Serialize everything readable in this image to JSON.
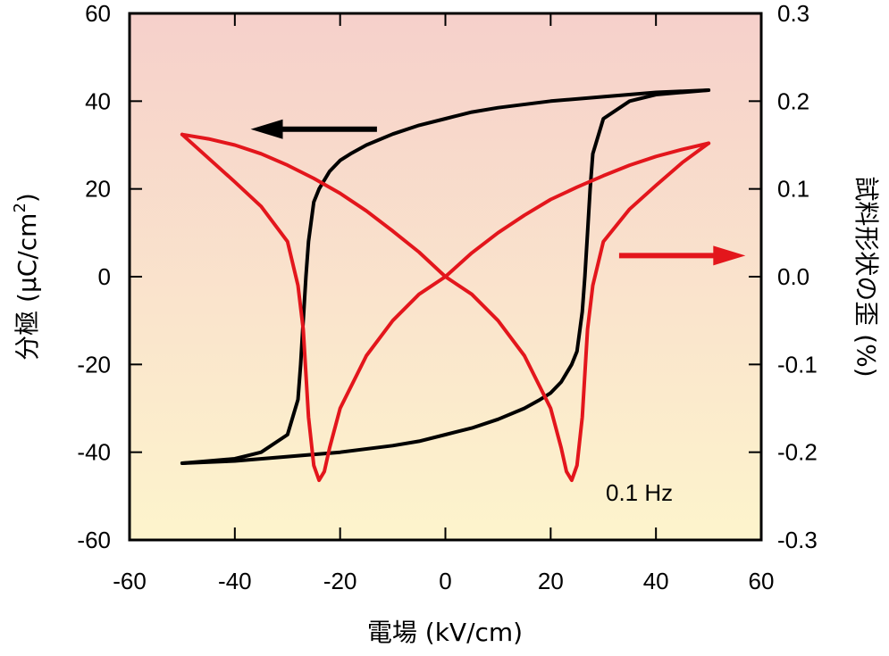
{
  "chart_data": {
    "type": "line",
    "title": "",
    "xlabel": "電場 (kV/cm)",
    "ylabel_left": "分極 (μC/cm",
    "ylabel_left_sup": "2",
    "ylabel_left_close": ")",
    "ylabel_right": "試料形状の歪 (%)",
    "xlim": [
      -60,
      60
    ],
    "ylim_left": [
      -60,
      60
    ],
    "ylim_right": [
      -0.3,
      0.3
    ],
    "xticks": [
      "-60",
      "-40",
      "-20",
      "0",
      "20",
      "40",
      "60"
    ],
    "yticks_left": [
      "-60",
      "-40",
      "-20",
      "0",
      "20",
      "40",
      "60"
    ],
    "yticks_right": [
      "-0.3",
      "-0.2",
      "-0.1",
      "0.0",
      "0.1",
      "0.2",
      "0.3"
    ],
    "annotation": "0.1 Hz",
    "background_gradient": [
      "#f6d0cb",
      "#fdf4cc"
    ],
    "series": [
      {
        "axis": "left",
        "color": "#000000",
        "branches": [
          {
            "x": [
              -50,
              -45,
              -40,
              -35,
              -30,
              -28,
              -27.5,
              -27,
              -26.5,
              -26,
              -25,
              -24,
              -22,
              -20,
              -18,
              -15,
              -10,
              -5,
              0,
              5,
              10,
              20,
              30,
              40,
              50
            ],
            "y": [
              -42.5,
              -42,
              -41.5,
              -40,
              -36,
              -28,
              -20,
              -10,
              0,
              8,
              17,
              20,
              24,
              26.5,
              28,
              30,
              32.5,
              34.5,
              36,
              37.5,
              38.5,
              40,
              41,
              42,
              42.5
            ]
          },
          {
            "x": [
              50,
              45,
              40,
              35,
              30,
              28,
              27.5,
              27,
              26.5,
              26,
              25,
              24,
              22,
              20,
              18,
              15,
              10,
              5,
              0,
              -5,
              -10,
              -20,
              -30,
              -40,
              -50
            ],
            "y": [
              42.5,
              42,
              41.5,
              40,
              36,
              28,
              20,
              10,
              0,
              -8,
              -17,
              -20,
              -24,
              -26.5,
              -28,
              -30,
              -32.5,
              -34.5,
              -36,
              -37.5,
              -38.5,
              -40,
              -41,
              -42,
              -42.5
            ]
          }
        ]
      },
      {
        "axis": "right",
        "color": "#e3161c",
        "branches": [
          {
            "x": [
              -50,
              -45,
              -40,
              -35,
              -30,
              -28,
              -27,
              -26,
              -25,
              -24,
              -23,
              -22,
              -20,
              -15,
              -10,
              -5,
              0,
              5,
              10,
              15,
              20,
              25,
              30,
              35,
              40,
              45,
              50
            ],
            "y": [
              0.162,
              0.135,
              0.108,
              0.08,
              0.04,
              -0.01,
              -0.06,
              -0.16,
              -0.215,
              -0.232,
              -0.222,
              -0.195,
              -0.15,
              -0.09,
              -0.05,
              -0.02,
              0.0,
              0.027,
              0.05,
              0.07,
              0.088,
              0.102,
              0.115,
              0.127,
              0.137,
              0.145,
              0.152
            ]
          },
          {
            "x": [
              50,
              45,
              40,
              35,
              30,
              28,
              27,
              26,
              25,
              24,
              23,
              22,
              20,
              15,
              10,
              5,
              0,
              -5,
              -10,
              -15,
              -20,
              -25,
              -30,
              -35,
              -40,
              -45,
              -50
            ],
            "y": [
              0.152,
              0.13,
              0.104,
              0.077,
              0.04,
              -0.01,
              -0.06,
              -0.16,
              -0.215,
              -0.232,
              -0.222,
              -0.195,
              -0.15,
              -0.09,
              -0.05,
              -0.02,
              0.0,
              0.028,
              0.052,
              0.075,
              0.095,
              0.112,
              0.127,
              0.14,
              0.15,
              0.157,
              0.162
            ]
          }
        ]
      }
    ],
    "arrows": [
      {
        "axis": "left",
        "direction": "left",
        "color": "#000000",
        "from": [
          -13,
          33.6
        ],
        "to": [
          -37,
          33.6
        ]
      },
      {
        "axis": "right",
        "direction": "right",
        "color": "#e3161c",
        "from": [
          33,
          0.024
        ],
        "to": [
          57,
          0.024
        ]
      }
    ]
  }
}
